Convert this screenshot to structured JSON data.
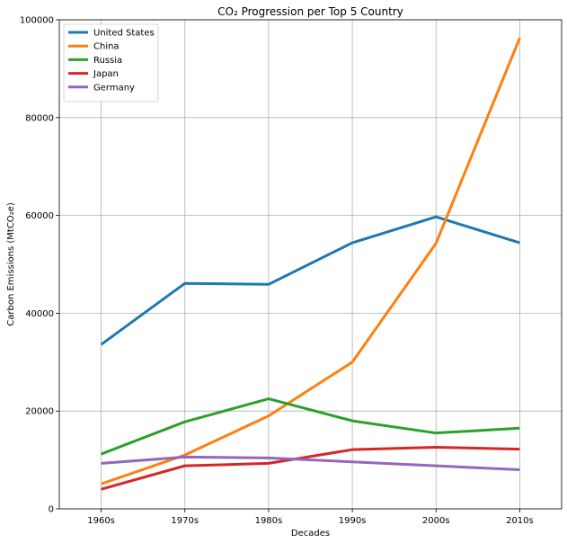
{
  "chart_data": {
    "type": "line",
    "title": "CO₂ Progression per Top 5 Country",
    "xlabel": "Decades",
    "ylabel": "Carbon Emissions (MtCO₂e)",
    "categories": [
      "1960s",
      "1970s",
      "1980s",
      "1990s",
      "2000s",
      "2010s"
    ],
    "ylim": [
      0,
      100000
    ],
    "yticks": [
      0,
      20000,
      40000,
      60000,
      80000,
      100000
    ],
    "grid": true,
    "legend_position": "top-left",
    "series": [
      {
        "name": "United States",
        "color": "#1f77b4",
        "values": [
          33600,
          46100,
          45900,
          54400,
          59700,
          54400
        ]
      },
      {
        "name": "China",
        "color": "#ff7f0e",
        "values": [
          5100,
          11000,
          19000,
          30000,
          54300,
          96300
        ]
      },
      {
        "name": "Russia",
        "color": "#2ca02c",
        "values": [
          11200,
          17800,
          22500,
          18000,
          15500,
          16500
        ]
      },
      {
        "name": "Japan",
        "color": "#d62728",
        "values": [
          4000,
          8800,
          9300,
          12100,
          12600,
          12200
        ]
      },
      {
        "name": "Germany",
        "color": "#9467bd",
        "values": [
          9300,
          10600,
          10400,
          9600,
          8800,
          8000
        ]
      }
    ]
  }
}
